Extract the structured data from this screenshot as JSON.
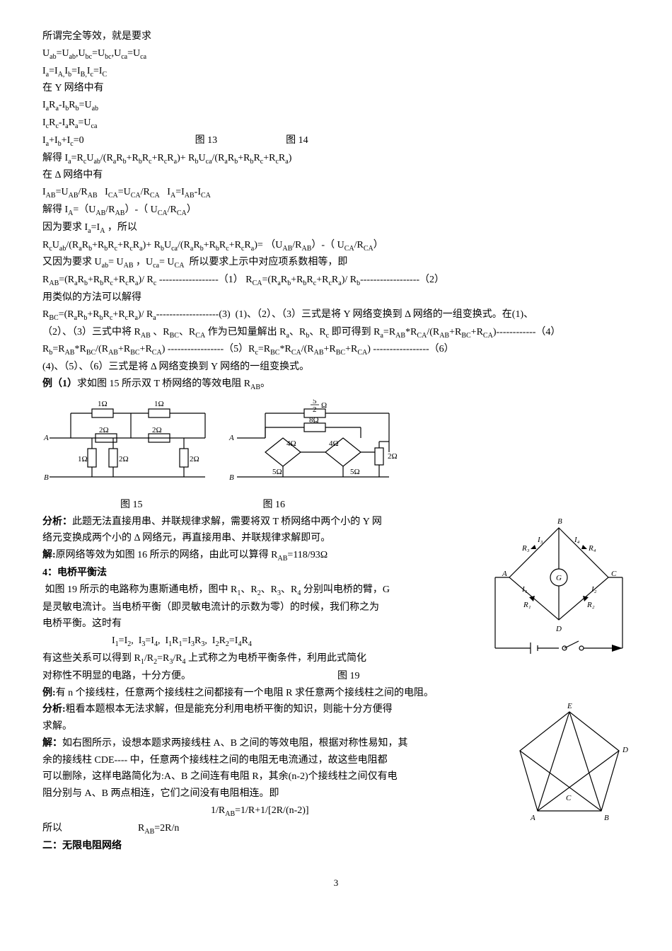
{
  "para1": "所谓完全等效，就是要求",
  "eq1": "U",
  "lines": {
    "l1": "所谓完全等效，就是要求",
    "l2_html": "U<sub>ab</sub>=U<sub>ab</sub>,U<sub>bc</sub>=U<sub>bc</sub>,U<sub>ca</sub>=U<sub>ca</sub>",
    "l3_html": "I<sub>a</sub>=I<sub>A,</sub>I<sub>b</sub>=I<sub>B,</sub>I<sub>c</sub>=I<sub>C</sub>",
    "l4": "在 Y 网络中有",
    "l5_html": "I<sub>a</sub>R<sub>a</sub>-I<sub>b</sub>R<sub>b</sub>=U<sub>ab</sub>",
    "l6_html": "I<sub>c</sub>R<sub>c</sub>-I<sub>a</sub>R<sub>a</sub>=U<sub>ca</sub>",
    "l7_html": "I<sub>a</sub>+I<sub>b</sub>+I<sub>c</sub>=0",
    "fig13": "图 13",
    "fig14": "图 14",
    "l8_html": "解得 I<sub>a</sub>=R<sub>c</sub>U<sub>ab</sub>/(R<sub>a</sub>R<sub>b</sub>+R<sub>b</sub>R<sub>c</sub>+R<sub>c</sub>R<sub>a</sub>)+ R<sub>b</sub>U<sub>ca</sub>/(R<sub>a</sub>R<sub>b</sub>+R<sub>b</sub>R<sub>c</sub>+R<sub>c</sub>R<sub>a</sub>)",
    "l9": "在 Δ 网络中有",
    "l10_html": "I<sub>AB</sub>=U<sub>AB</sub>/R<sub>AB</sub>&nbsp;&nbsp;&nbsp;I<sub>CA</sub>=U<sub>CA</sub>/R<sub>CA</sub>&nbsp;&nbsp;&nbsp;I<sub>A</sub>=I<sub>AB</sub>-I<sub>CA</sub>",
    "l11_html": "解得 I<sub>A</sub>=（U<sub>AB</sub>/R<sub>AB</sub>）-（ U<sub>CA</sub>/R<sub>CA</sub>）",
    "l12_html": "因为要求 I<sub>a</sub>=I<sub>A</sub> ，所以",
    "l13_html": "R<sub>c</sub>U<sub>ab</sub>/(R<sub>a</sub>R<sub>b</sub>+R<sub>b</sub>R<sub>c</sub>+R<sub>c</sub>R<sub>a</sub>)+ R<sub>b</sub>U<sub>ca</sub>/(R<sub>a</sub>R<sub>b</sub>+R<sub>b</sub>R<sub>c</sub>+R<sub>c</sub>R<sub>a</sub>)= （U<sub>AB</sub>/R<sub>AB</sub>）-（ U<sub>CA</sub>/R<sub>CA</sub>）",
    "l14_html": "又因为要求 U<sub>ab</sub>= U<sub>AB</sub> ，U<sub>ca</sub>= U<sub>CA</sub>&nbsp; 所以要求上示中对应项系数相等，即",
    "l15_html": "R<sub>AB</sub>=(R<sub>a</sub>R<sub>b</sub>+R<sub>b</sub>R<sub>c</sub>+R<sub>c</sub>R<sub>a</sub>)/ R<sub>c</sub> ------------------（1） R<sub>CA</sub>=(R<sub>a</sub>R<sub>b</sub>+R<sub>b</sub>R<sub>c</sub>+R<sub>c</sub>R<sub>a</sub>)/ R<sub>b</sub>------------------（2）",
    "l16": "用类似的方法可以解得",
    "l17_html": "R<sub>BC</sub>=(R<sub>a</sub>R<sub>b</sub>+R<sub>b</sub>R<sub>c</sub>+R<sub>c</sub>R<sub>a</sub>)/ R<sub>a</sub>-------------------(3)&nbsp;&nbsp;(1)、（2）、（3）三式是将 Y 网络变换到 Δ 网络的一组变换式。在(1)、",
    "l18_html": "（2）、（3）三式中将 R<sub>AB</sub> 、R<sub>BC</sub>、R<sub>CA</sub> 作为已知量解出 R<sub>a</sub>、R<sub>b</sub>、R<sub>c</sub> 即可得到 R<sub>a</sub>=R<sub>AB</sub>*R<sub>CA</sub>/(R<sub>AB</sub>+R<sub>BC</sub>+R<sub>CA</sub>)------------（4）",
    "l19_html": "R<sub>b</sub>=R<sub>AB</sub>*R<sub>BC</sub>/(R<sub>AB</sub>+R<sub>BC</sub>+R<sub>CA</sub>) -----------------（5）R<sub>c</sub>=R<sub>BC</sub>*R<sub>CA</sub>/(R<sub>AB</sub>+R<sub>BC</sub>+R<sub>CA</sub>) -----------------（6）",
    "l20": "(4)、（5）、（6）三式是将 Δ 网络变换到 Y 网络的一组变换式。",
    "ex1_html": "<b>例（1）</b>求如图 15 所示双 T 桥网络的等效电阻 R<sub>AB</sub>。",
    "fig15": "图 15",
    "fig16": "图 16",
    "ana1_html": "<b>分析：</b>此题无法直接用串、并联规律求解，需要将双 T 桥网络中两个小的 Y 网",
    "ana2": "络元变换成两个小的 Δ 网络元，再直接用串、并联规律求解即可。",
    "sol1_html": "<b>解:</b>原网络等效为如图 16 所示的网络，由此可以算得 R<sub>AB</sub>=118/93Ω",
    "sec4": "4：电桥平衡法",
    "bridge1_html": "&nbsp;如图 19 所示的电路称为惠斯通电桥，图中 R<sub>1</sub>、R<sub>2</sub>、R<sub>3</sub>、R<sub>4</sub> 分别叫电桥的臂，G",
    "bridge2": "是灵敏电流计。当电桥平衡（即灵敏电流计的示数为零）的时候，我们称之为",
    "bridge3": "电桥平衡。这时有",
    "bridge_eq_html": "I<sub>1</sub>=I<sub>2</sub>,&nbsp;&nbsp;I<sub>3</sub>=I<sub>4</sub>,&nbsp;&nbsp;I<sub>1</sub>R<sub>1</sub>=I<sub>3</sub>R<sub>3</sub>,&nbsp;&nbsp;I<sub>2</sub>R<sub>2</sub>=I<sub>4</sub>R<sub>4</sub>",
    "bridge4_html": "有这些关系可以得到 R<sub>1</sub>/R<sub>2</sub>=R<sub>3</sub>/R<sub>4</sub>&nbsp;上式称之为电桥平衡条件，利用此式简化",
    "bridge5": "对称性不明显的电路，十分方便。",
    "fig19": "图 19",
    "ex2_html": "<b>例:</b>有 n 个接线柱，任意两个接线柱之间都接有一个电阻 R 求任意两个接线柱之间的电阻。",
    "ana3_html": "<b>分析:</b>粗看本题根本无法求解，但是能充分利用电桥平衡的知识，则能十分方便得",
    "ana3b": "求解。",
    "sol2_html": "<b>解：</b>如右图所示，设想本题求两接线柱 A、B 之间的等效电阻，根据对称性易知，其",
    "sol2b": "余的接线柱 CDE---- 中，任意两个接线柱之间的电阻无电流通过，故这些电阻都",
    "sol2c": "可以删除，这样电路简化为:A、B 之间连有电阻 R，其余(n-2)个接线柱之间仅有电",
    "sol2d": "阻分别与 A、B 两点相连，它们之间没有电阻相连。即",
    "eq_final_html": "1/R<sub>AB</sub>=1/R+1/[2R/(n-2)]",
    "so": "所以",
    "rab_html": "R<sub>AB</sub>=2R/n",
    "sec2": "二：无限电阻网络",
    "pagenum": "3"
  },
  "fig15_data": {
    "r_top": [
      "1Ω",
      "1Ω"
    ],
    "r_mid": [
      "2Ω",
      "2Ω"
    ],
    "r_bot": [
      "1Ω",
      "2Ω",
      "2Ω"
    ],
    "labels": [
      "A",
      "B"
    ]
  },
  "fig16_data": {
    "top": "5/2 Ω",
    "r8": "8Ω",
    "r4a": "4Ω",
    "r4b": "4Ω",
    "r5a": "5Ω",
    "r5b": "5Ω",
    "r2": "2Ω",
    "labels": [
      "A",
      "B"
    ]
  },
  "fig19_data": {
    "labels": [
      "A",
      "B",
      "C",
      "D",
      "G"
    ],
    "currents": [
      "I₁",
      "I₂",
      "I₃",
      "I₄"
    ],
    "resistors": [
      "R₁",
      "R₂",
      "R₃",
      "R₄"
    ]
  },
  "fig_right2": {
    "labels": [
      "A",
      "B",
      "C",
      "D",
      "E"
    ]
  }
}
